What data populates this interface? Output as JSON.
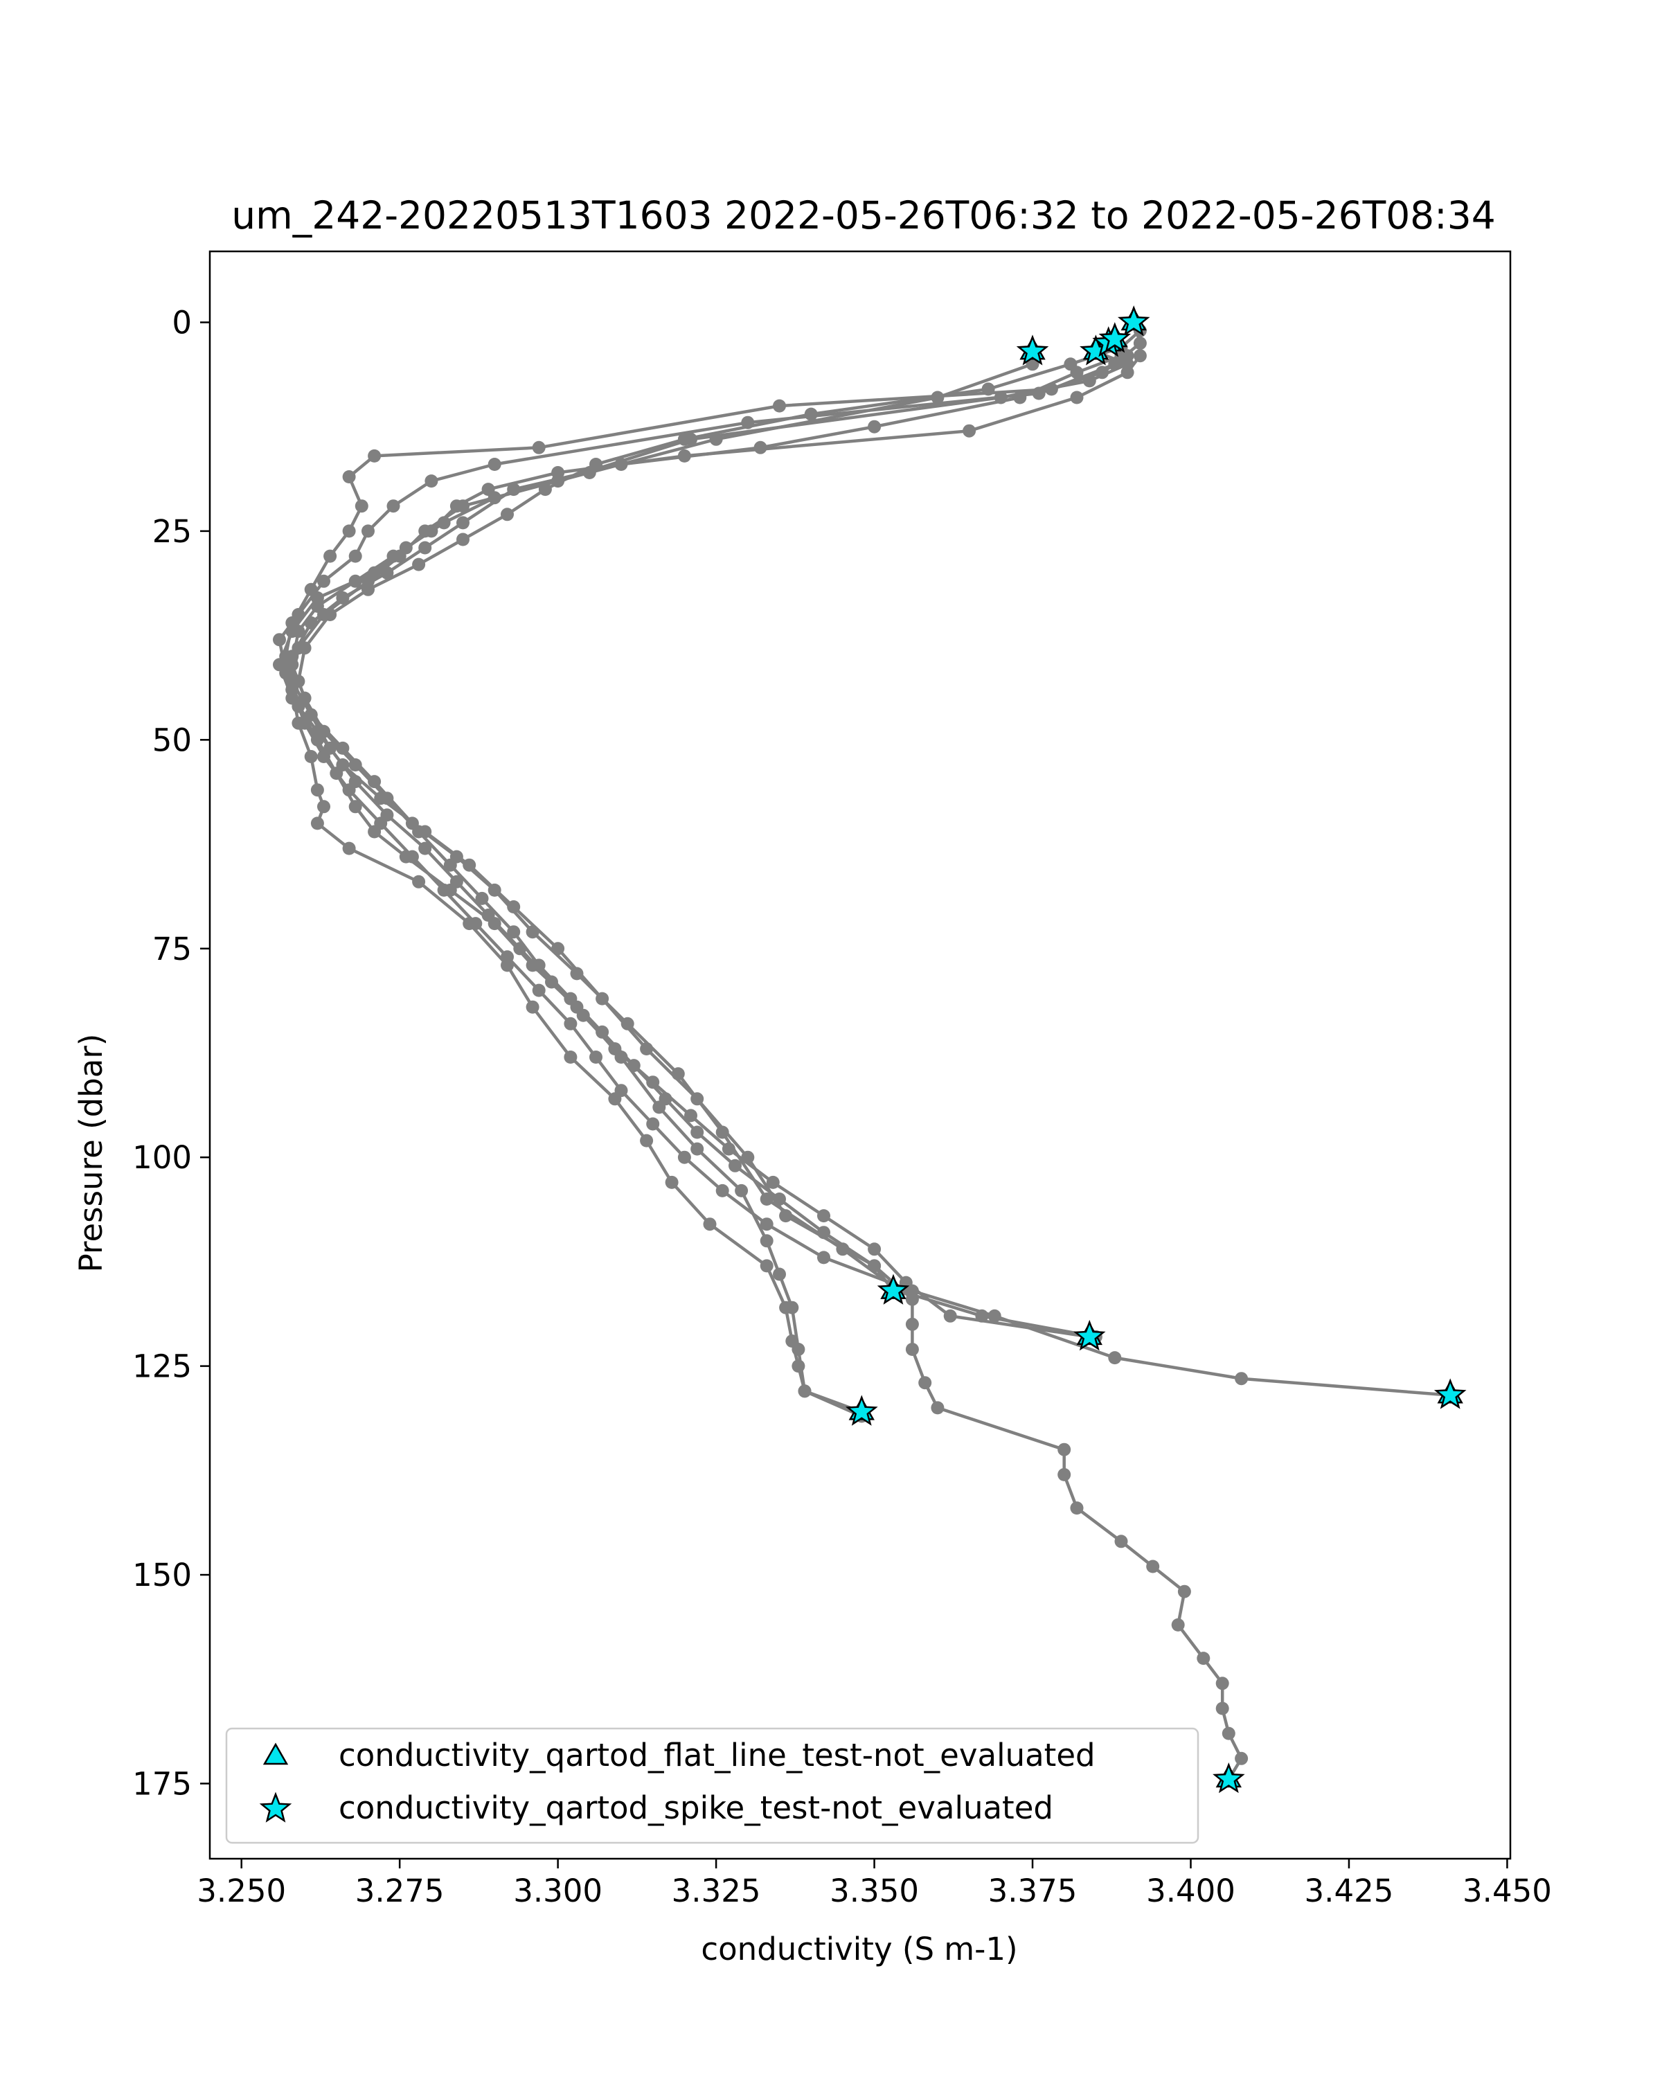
{
  "chart_data": {
    "type": "scatter",
    "title": "um_242-20220513T1603 2022-05-26T06:32 to 2022-05-26T08:34",
    "xlabel": "conductivity (S m-1)",
    "ylabel": "Pressure (dbar)",
    "xlim": [
      3.245,
      3.4505
    ],
    "ylim": [
      184,
      -8.5
    ],
    "y_inverted": true,
    "grid": false,
    "legend_position": "lower-left",
    "xticks": [
      "3.250",
      "3.275",
      "3.300",
      "3.325",
      "3.350",
      "3.375",
      "3.400",
      "3.425",
      "3.450"
    ],
    "yticks": [
      "0",
      "25",
      "50",
      "75",
      "100",
      "125",
      "150",
      "175"
    ],
    "colors": {
      "profile": "#808080",
      "flag_fill": "#00e5ee",
      "flag_edge": "#000000"
    },
    "profiles": [
      {
        "x": [
          3.391,
          3.392,
          3.388,
          3.378,
          3.335,
          3.297,
          3.271,
          3.267,
          3.269,
          3.267,
          3.264,
          3.261,
          3.258,
          3.257,
          3.258,
          3.259,
          3.261,
          3.262,
          3.263,
          3.262,
          3.267,
          3.278,
          3.286,
          3.292,
          3.296,
          3.302,
          3.309,
          3.314,
          3.318,
          3.324,
          3.333,
          3.336,
          3.337,
          3.338,
          3.339,
          3.348
        ],
        "y": [
          0,
          2.5,
          5,
          8,
          10,
          15,
          16,
          18.5,
          22,
          25,
          28,
          32,
          36,
          40,
          44,
          48,
          52,
          56,
          58,
          60,
          63,
          67,
          72,
          77,
          82,
          88,
          93,
          98,
          103,
          108,
          113,
          118,
          122,
          125,
          128,
          131
        ]
      },
      {
        "x": [
          3.387,
          3.39,
          3.386,
          3.376,
          3.33,
          3.29,
          3.28,
          3.274,
          3.27,
          3.268,
          3.263,
          3.259,
          3.256,
          3.257,
          3.259,
          3.262,
          3.265,
          3.268,
          3.271,
          3.276,
          3.283,
          3.29,
          3.296,
          3.303,
          3.31,
          3.316,
          3.322,
          3.329,
          3.333,
          3.335,
          3.337,
          3.338,
          3.339,
          3.348
        ],
        "y": [
          2.5,
          4,
          6,
          8.5,
          12,
          17,
          19,
          22,
          25,
          28,
          31,
          35,
          38,
          42,
          46,
          50,
          54,
          58,
          61,
          64,
          68,
          72,
          77,
          82,
          88,
          94,
          99,
          104,
          110,
          114,
          118,
          123,
          128,
          130.5
        ]
      },
      {
        "x": [
          3.385,
          3.39,
          3.384,
          3.37,
          3.321,
          3.3,
          3.285,
          3.279,
          3.275,
          3.27,
          3.263,
          3.259,
          3.258,
          3.261,
          3.266,
          3.271,
          3.277,
          3.284,
          3.29,
          3.296,
          3.303,
          3.311,
          3.319,
          3.326,
          3.333,
          3.345,
          3.354,
          3.367,
          3.385
        ],
        "y": [
          3.5,
          5,
          7,
          9,
          14,
          19,
          22,
          25,
          28,
          31,
          35,
          39,
          43,
          47,
          51,
          55,
          60,
          64,
          68,
          73,
          78,
          84,
          90,
          97,
          105,
          111,
          116,
          119,
          121.5
        ]
      },
      {
        "x": [
          3.375,
          3.375,
          3.36,
          3.325,
          3.305,
          3.29,
          3.282,
          3.276,
          3.271,
          3.262,
          3.258,
          3.256,
          3.258,
          3.262,
          3.266,
          3.272,
          3.279,
          3.286,
          3.293,
          3.3,
          3.307,
          3.314,
          3.322,
          3.33,
          3.336,
          3.35,
          3.353
        ],
        "y": [
          3.5,
          5,
          9,
          14,
          18,
          21,
          24,
          27,
          30,
          33,
          37,
          41,
          45,
          49,
          53,
          57,
          61,
          65,
          70,
          75,
          81,
          87,
          93,
          100,
          107,
          113,
          116
        ]
      },
      {
        "x": [
          3.388,
          3.389,
          3.382,
          3.373,
          3.35,
          3.332,
          3.31,
          3.293,
          3.285,
          3.279,
          3.273,
          3.266,
          3.261,
          3.258,
          3.258,
          3.26,
          3.263,
          3.267,
          3.272,
          3.277,
          3.282,
          3.287,
          3.292,
          3.297,
          3.302,
          3.306,
          3.31,
          3.315,
          3.32,
          3.326,
          3.333,
          3.342,
          3.356,
          3.369,
          3.388,
          3.408,
          3.441
        ],
        "y": [
          2,
          4,
          6,
          9,
          12.5,
          15,
          17,
          20,
          24,
          27,
          30,
          33,
          36,
          40,
          44,
          48,
          52,
          56,
          60,
          64,
          68,
          72,
          76,
          80,
          84,
          88,
          92,
          96,
          100,
          104,
          108,
          112,
          116,
          119,
          124,
          126.5,
          128.5
        ]
      },
      {
        "x": [
          3.392,
          3.39,
          3.382,
          3.365,
          3.32,
          3.3,
          3.289,
          3.284,
          3.28,
          3.274,
          3.268,
          3.262,
          3.259,
          3.258,
          3.26,
          3.263,
          3.268,
          3.273,
          3.278,
          3.283,
          3.288,
          3.293,
          3.297,
          3.302,
          3.307,
          3.312,
          3.317,
          3.322,
          3.328,
          3.335,
          3.342,
          3.35,
          3.356,
          3.356,
          3.356,
          3.358,
          3.36,
          3.38,
          3.38,
          3.382,
          3.389,
          3.394,
          3.399,
          3.398,
          3.402,
          3.405,
          3.405,
          3.406,
          3.408,
          3.406
        ],
        "y": [
          4,
          6,
          9,
          13,
          16,
          18,
          20,
          22,
          25,
          28,
          31,
          34,
          37,
          41,
          45,
          49,
          53,
          57,
          61,
          65,
          69,
          73,
          77,
          81,
          85,
          89,
          93,
          97,
          101,
          105,
          109,
          113,
          117,
          120,
          123,
          127,
          130,
          135,
          138,
          142,
          146,
          149,
          152,
          156,
          160,
          163,
          166,
          169,
          172,
          174.5
        ]
      },
      {
        "x": [
          3.392,
          3.389,
          3.381,
          3.368,
          3.34,
          3.32,
          3.306,
          3.298,
          3.292,
          3.285,
          3.278,
          3.27,
          3.264,
          3.26,
          3.259,
          3.261,
          3.264,
          3.268,
          3.273,
          3.279,
          3.284,
          3.289,
          3.294,
          3.299,
          3.304,
          3.309,
          3.315,
          3.321,
          3.327,
          3.334,
          3.342,
          3.35,
          3.355,
          3.362,
          3.384
        ],
        "y": [
          1,
          3,
          5,
          8,
          11,
          14,
          17,
          20,
          23,
          26,
          29,
          32,
          35,
          39,
          43,
          47,
          51,
          55,
          59,
          63,
          67,
          71,
          75,
          79,
          83,
          87,
          91,
          95,
          99,
          103,
          107,
          111,
          115,
          119,
          121.5
        ]
      }
    ],
    "flags": {
      "flat_line": [
        {
          "x": 3.391,
          "y": 0
        },
        {
          "x": 3.375,
          "y": 3.5
        },
        {
          "x": 3.385,
          "y": 3.5
        },
        {
          "x": 3.387,
          "y": 2.5
        },
        {
          "x": 3.388,
          "y": 2
        },
        {
          "x": 3.353,
          "y": 116
        },
        {
          "x": 3.384,
          "y": 121.5
        },
        {
          "x": 3.348,
          "y": 130.5
        },
        {
          "x": 3.441,
          "y": 128.5
        },
        {
          "x": 3.406,
          "y": 174.5
        }
      ],
      "spike": [
        {
          "x": 3.391,
          "y": 0
        },
        {
          "x": 3.375,
          "y": 3.5
        },
        {
          "x": 3.385,
          "y": 3.5
        },
        {
          "x": 3.387,
          "y": 2.5
        },
        {
          "x": 3.388,
          "y": 2
        },
        {
          "x": 3.353,
          "y": 116
        },
        {
          "x": 3.384,
          "y": 121.5
        },
        {
          "x": 3.348,
          "y": 130.5
        },
        {
          "x": 3.441,
          "y": 128.5
        },
        {
          "x": 3.406,
          "y": 174.5
        }
      ]
    },
    "legend": [
      {
        "label": "conductivity_qartod_flat_line_test-not_evaluated",
        "marker": "triangle"
      },
      {
        "label": "conductivity_qartod_spike_test-not_evaluated",
        "marker": "star"
      }
    ]
  }
}
